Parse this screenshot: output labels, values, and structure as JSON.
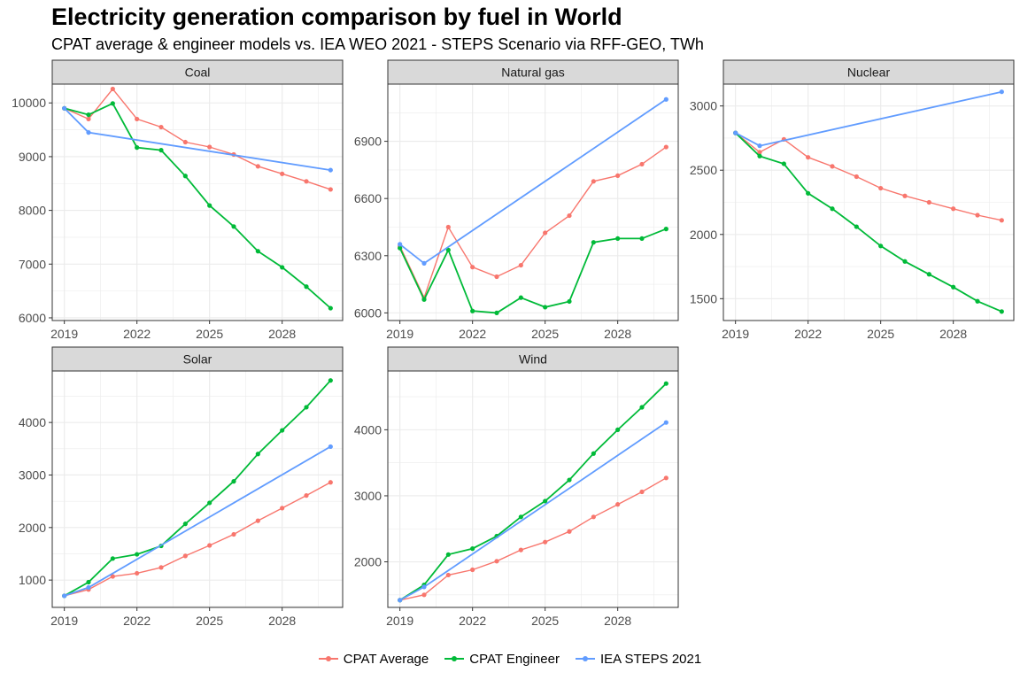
{
  "title": "Electricity generation comparison by fuel in World",
  "subtitle": "CPAT average & engineer models vs. IEA WEO 2021 - STEPS Scenario via RFF-GEO, TWh",
  "colors": {
    "cpat_average": "#F8766D",
    "cpat_engineer": "#00BA38",
    "iea_steps": "#619CFF",
    "strip_bg": "#D9D9D9",
    "grid": "#EBEBEB"
  },
  "legend": [
    {
      "name": "CPAT Average",
      "color": "#F8766D"
    },
    {
      "name": "CPAT Engineer",
      "color": "#00BA38"
    },
    {
      "name": "IEA STEPS 2021",
      "color": "#619CFF"
    }
  ],
  "chart_data": [
    {
      "type": "line",
      "facet": "Coal",
      "x": [
        2019,
        2020,
        2021,
        2022,
        2023,
        2024,
        2025,
        2026,
        2027,
        2028,
        2029,
        2030
      ],
      "xlim": [
        2018.5,
        2030.5
      ],
      "xticks": [
        2019,
        2022,
        2025,
        2028
      ],
      "ylim": [
        5950,
        10350
      ],
      "yticks": [
        6000,
        7000,
        8000,
        9000,
        10000
      ],
      "series": [
        {
          "name": "CPAT Average",
          "values": [
            9900,
            9700,
            10260,
            9700,
            9550,
            9270,
            9180,
            9040,
            8820,
            8680,
            8540,
            8390
          ]
        },
        {
          "name": "CPAT Engineer",
          "values": [
            9900,
            9780,
            9990,
            9170,
            9120,
            8640,
            8090,
            7700,
            7240,
            6940,
            6580,
            6180
          ]
        },
        {
          "name": "IEA STEPS 2021",
          "x": [
            2019,
            2020,
            2030
          ],
          "values": [
            9900,
            9450,
            8750
          ]
        }
      ]
    },
    {
      "type": "line",
      "facet": "Natural gas",
      "x": [
        2019,
        2020,
        2021,
        2022,
        2023,
        2024,
        2025,
        2026,
        2027,
        2028,
        2029,
        2030
      ],
      "xlim": [
        2018.5,
        2030.5
      ],
      "xticks": [
        2019,
        2022,
        2025,
        2028
      ],
      "ylim": [
        5960,
        7200
      ],
      "yticks": [
        6000,
        6300,
        6600,
        6900
      ],
      "series": [
        {
          "name": "CPAT Average",
          "values": [
            6350,
            6080,
            6450,
            6240,
            6190,
            6250,
            6420,
            6510,
            6690,
            6720,
            6780,
            6870
          ]
        },
        {
          "name": "CPAT Engineer",
          "values": [
            6340,
            6070,
            6330,
            6010,
            6000,
            6080,
            6030,
            6060,
            6370,
            6390,
            6390,
            6440
          ]
        },
        {
          "name": "IEA STEPS 2021",
          "x": [
            2019,
            2020,
            2030
          ],
          "values": [
            6360,
            6260,
            7120
          ]
        }
      ]
    },
    {
      "type": "line",
      "facet": "Nuclear",
      "x": [
        2019,
        2020,
        2021,
        2022,
        2023,
        2024,
        2025,
        2026,
        2027,
        2028,
        2029,
        2030
      ],
      "xlim": [
        2018.5,
        2030.5
      ],
      "xticks": [
        2019,
        2022,
        2025,
        2028
      ],
      "ylim": [
        1330,
        3170
      ],
      "yticks": [
        1500,
        2000,
        2500,
        3000
      ],
      "series": [
        {
          "name": "CPAT Average",
          "values": [
            2790,
            2640,
            2740,
            2600,
            2530,
            2450,
            2360,
            2300,
            2250,
            2200,
            2150,
            2110
          ]
        },
        {
          "name": "CPAT Engineer",
          "values": [
            2790,
            2610,
            2550,
            2320,
            2200,
            2060,
            1910,
            1790,
            1690,
            1590,
            1480,
            1400
          ]
        },
        {
          "name": "IEA STEPS 2021",
          "x": [
            2019,
            2020,
            2030
          ],
          "values": [
            2790,
            2690,
            3110
          ]
        }
      ]
    },
    {
      "type": "line",
      "facet": "Solar",
      "x": [
        2019,
        2020,
        2021,
        2022,
        2023,
        2024,
        2025,
        2026,
        2027,
        2028,
        2029,
        2030
      ],
      "xlim": [
        2018.5,
        2030.5
      ],
      "xticks": [
        2019,
        2022,
        2025,
        2028
      ],
      "ylim": [
        480,
        4980
      ],
      "yticks": [
        1000,
        2000,
        3000,
        4000
      ],
      "series": [
        {
          "name": "CPAT Average",
          "values": [
            700,
            820,
            1070,
            1130,
            1240,
            1460,
            1660,
            1870,
            2130,
            2370,
            2610,
            2860
          ]
        },
        {
          "name": "CPAT Engineer",
          "values": [
            700,
            960,
            1410,
            1490,
            1650,
            2070,
            2470,
            2880,
            3400,
            3850,
            4290,
            4800
          ]
        },
        {
          "name": "IEA STEPS 2021",
          "x": [
            2019,
            2020,
            2030
          ],
          "values": [
            700,
            860,
            3540
          ]
        }
      ]
    },
    {
      "type": "line",
      "facet": "Wind",
      "x": [
        2019,
        2020,
        2021,
        2022,
        2023,
        2024,
        2025,
        2026,
        2027,
        2028,
        2029,
        2030
      ],
      "xlim": [
        2018.5,
        2030.5
      ],
      "xticks": [
        2019,
        2022,
        2025,
        2028
      ],
      "ylim": [
        1310,
        4890
      ],
      "yticks": [
        2000,
        3000,
        4000
      ],
      "series": [
        {
          "name": "CPAT Average",
          "values": [
            1420,
            1500,
            1800,
            1880,
            2010,
            2180,
            2300,
            2460,
            2680,
            2870,
            3060,
            3270
          ]
        },
        {
          "name": "CPAT Engineer",
          "values": [
            1420,
            1650,
            2110,
            2200,
            2390,
            2680,
            2920,
            3240,
            3640,
            4000,
            4340,
            4700
          ]
        },
        {
          "name": "IEA STEPS 2021",
          "x": [
            2019,
            2020,
            2030
          ],
          "values": [
            1420,
            1620,
            4110
          ]
        }
      ]
    }
  ]
}
